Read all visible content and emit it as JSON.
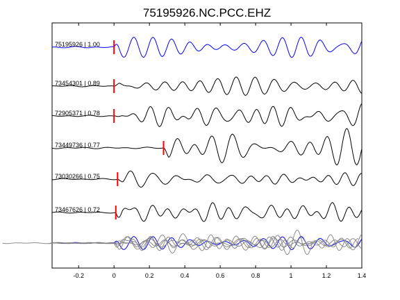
{
  "chart_data": {
    "type": "line",
    "title": "75195926.NC.PCC.EHZ",
    "xlabel": "",
    "ylabel": "",
    "xlim": [
      -0.35,
      1.4
    ],
    "x_ticks": [
      -0.2,
      0,
      0.2,
      0.4,
      0.6,
      0.8,
      1,
      1.2,
      1.4
    ],
    "x_tick_labels": [
      "-0.2",
      "0",
      "0.2",
      "0.4",
      "0.6",
      "0.8",
      "1",
      "1.2",
      "1.4"
    ],
    "grid": false,
    "colors": {
      "reference": "#0000ff",
      "trace": "#000000",
      "pick": "#ff0000",
      "stack_gray": "#808080"
    },
    "traces": [
      {
        "label": "75195926 | 1.00",
        "pick_time": 0.0,
        "color": "#0000ff",
        "scale": 1.3,
        "seed": 1
      },
      {
        "label": "73454301 | 0.89",
        "pick_time": 0.0,
        "color": "#000000",
        "scale": 1.1,
        "seed": 2
      },
      {
        "label": "72905371 | 0.78",
        "pick_time": 0.0,
        "color": "#000000",
        "scale": 1.2,
        "seed": 3
      },
      {
        "label": "73449736 | 0.77",
        "pick_time": 0.28,
        "color": "#000000",
        "scale": 1.25,
        "seed": 4
      },
      {
        "label": "73030266 | 0.75",
        "pick_time": 0.02,
        "color": "#000000",
        "scale": 1.1,
        "seed": 5
      },
      {
        "label": "73467626 | 0.72",
        "pick_time": 0.01,
        "color": "#000000",
        "scale": 1.0,
        "seed": 6
      }
    ],
    "stack": {
      "label": "",
      "color": "#0000ff"
    }
  }
}
